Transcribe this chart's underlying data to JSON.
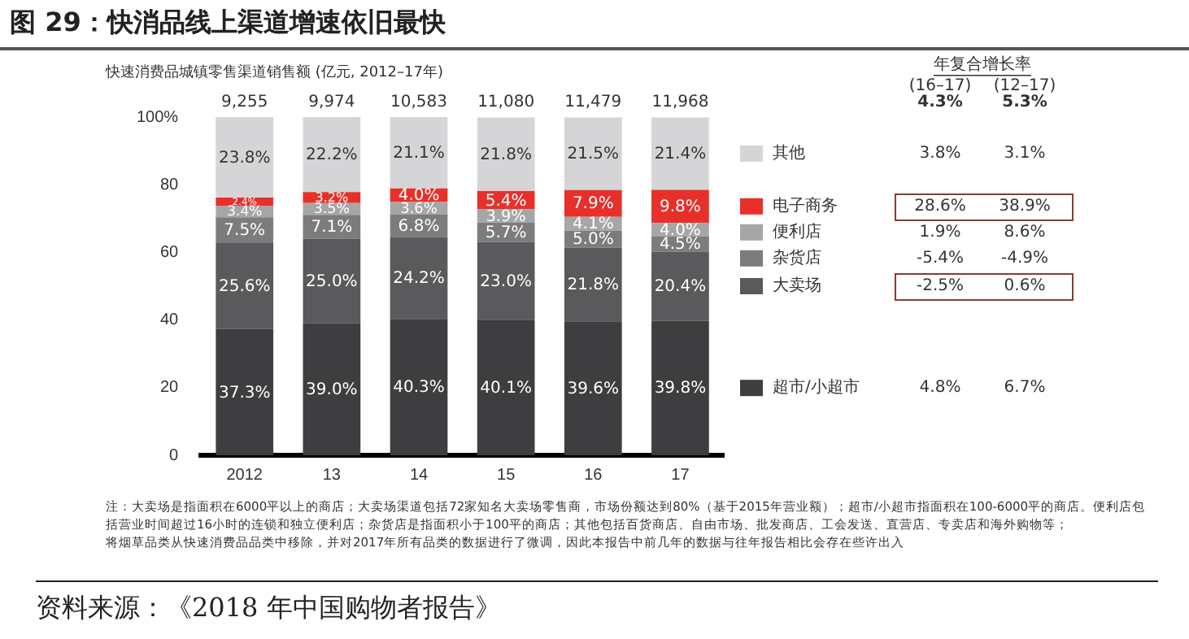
{
  "chart_data": {
    "type": "bar",
    "stacked": true,
    "title": "图 29：快消品线上渠道增速依旧最快",
    "subtitle": "快速消费品城镇零售渠道销售额 (亿元, 2012–17年)",
    "categories": [
      "2012",
      "13",
      "14",
      "15",
      "16",
      "17"
    ],
    "series": [
      {
        "name": "超市/小超市",
        "color": "#3e3e40",
        "values": [
          37.3,
          39.0,
          40.3,
          40.1,
          39.6,
          39.8
        ],
        "value_labels": [
          "37.3%",
          "39.0%",
          "40.3%",
          "40.1%",
          "39.6%",
          "39.8%"
        ]
      },
      {
        "name": "大卖场",
        "color": "#5a5a5c",
        "values": [
          25.6,
          25.0,
          24.2,
          23.0,
          21.8,
          20.4
        ],
        "value_labels": [
          "25.6%",
          "25.0%",
          "24.2%",
          "23.0%",
          "21.8%",
          "20.4%"
        ]
      },
      {
        "name": "杂货店",
        "color": "#7c7c7e",
        "values": [
          7.5,
          7.1,
          6.8,
          5.7,
          5.0,
          4.5
        ],
        "value_labels": [
          "7.5%",
          "7.1%",
          "6.8%",
          "5.7%",
          "5.0%",
          "4.5%"
        ]
      },
      {
        "name": "便利店",
        "color": "#a6a6a8",
        "values": [
          3.4,
          3.5,
          3.6,
          3.9,
          4.1,
          4.0
        ],
        "value_labels": [
          "3.4%",
          "3.5%",
          "3.6%",
          "3.9%",
          "4.1%",
          "4.0%"
        ]
      },
      {
        "name": "电子商务",
        "color": "#e8302a",
        "values": [
          2.4,
          3.2,
          4.0,
          5.4,
          7.9,
          9.8
        ],
        "value_labels": [
          "2.4%",
          "3.2%",
          "4.0%",
          "5.4%",
          "7.9%",
          "9.8%"
        ]
      },
      {
        "name": "其他",
        "color": "#d5d5d7",
        "values": [
          23.8,
          22.2,
          21.1,
          21.8,
          21.5,
          21.4
        ],
        "value_labels": [
          "23.8%",
          "22.2%",
          "21.1%",
          "21.8%",
          "21.5%",
          "21.4%"
        ]
      }
    ],
    "ylim": [
      0,
      100
    ],
    "yticks": [
      0,
      20,
      40,
      60,
      80,
      {
        "value": 100,
        "label": "100%"
      }
    ],
    "grid": false,
    "legend": "right",
    "annotations": [
      "年复合增长率",
      "(16–17)",
      "(12–17)",
      "4.3%",
      "5.3%",
      "4.8%",
      "6.7%",
      "-2.5%",
      "0.6%",
      "-5.4%",
      "-4.9%",
      "1.9%",
      "8.6%",
      "28.6%",
      "38.9%",
      "3.8%",
      "3.1%",
      "9,255",
      "9,974",
      "10,583",
      "11,080",
      "11,479",
      "11,968",
      "注：大卖场是指面积在6000平以上的商店；大卖场渠道包括72家知名大卖场零售商，市场份额达到80%（基于2015年营业额）；超市/小超市指面积在100-6000平的商店。便利店包括营业时间超过16小时的连锁和独立便利店；杂货店是指面积小于100平的商店；其他包括百货商店、自由市场、批发商店、工会发送、直营店、专卖店和海外购物等；",
      "将烟草品类从快速消费品品类中移除，并对2017年所有品类的数据进行了微调，因此本报告中前几年的数据与往年报告相比会存在些许出入",
      "资料来源：《2018 年中国购物者报告》"
    ]
  }
}
